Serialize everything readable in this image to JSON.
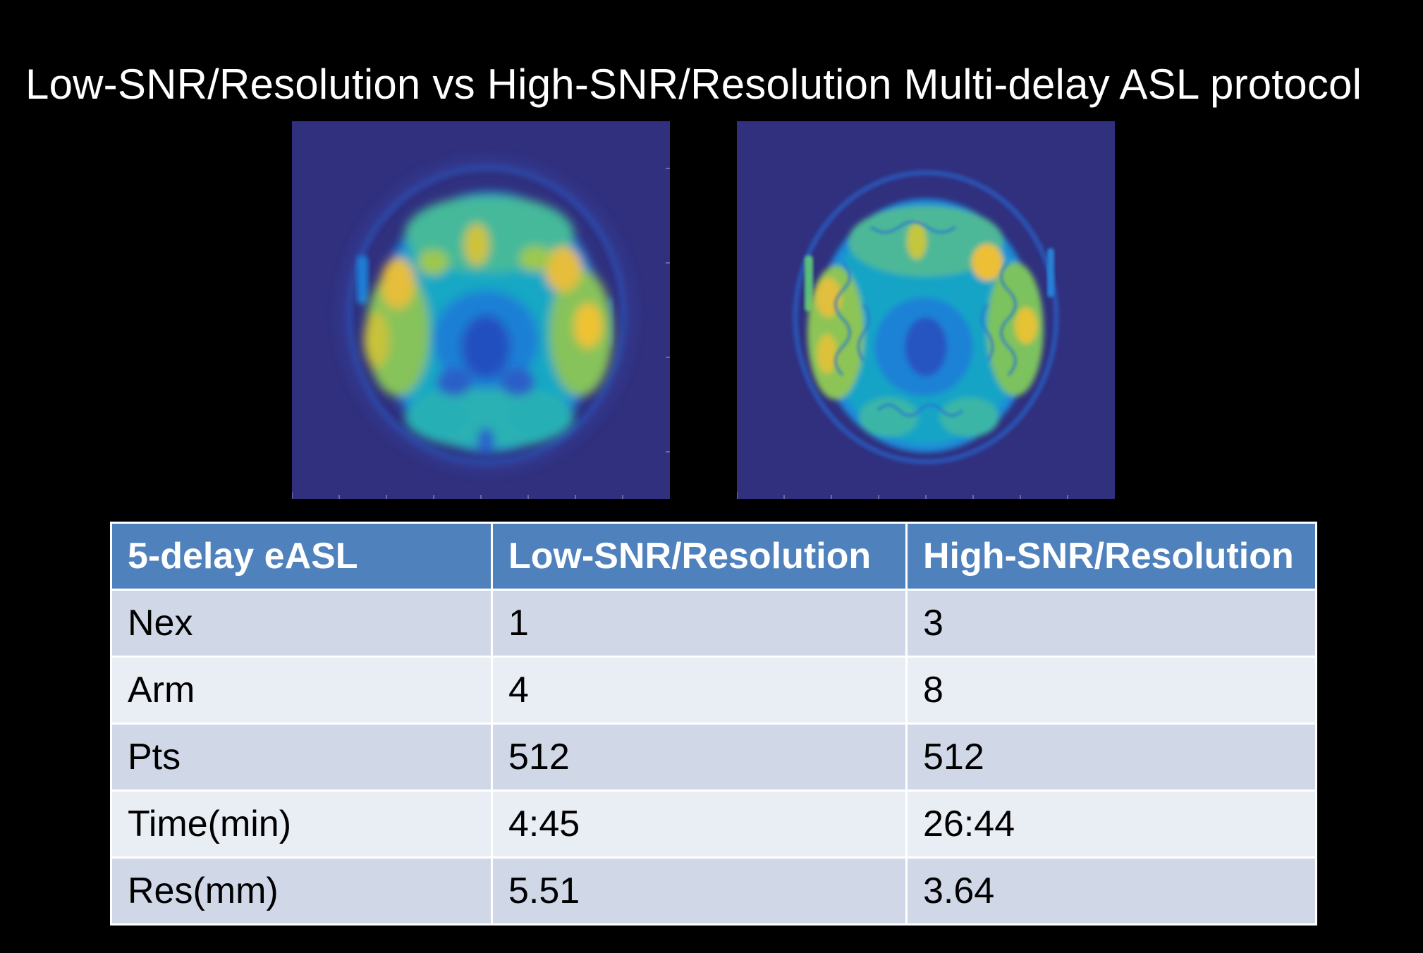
{
  "slide": {
    "title": "Low-SNR/Resolution vs High-SNR/Resolution Multi-delay ASL protocol"
  },
  "images": [
    {
      "label": "low-resolution-perfusion-map",
      "colormap": "parula"
    },
    {
      "label": "high-resolution-perfusion-map",
      "colormap": "parula"
    }
  ],
  "table": {
    "headers": [
      "5-delay eASL",
      "Low-SNR/Resolution",
      "High-SNR/Resolution"
    ],
    "rows": [
      [
        "Nex",
        "1",
        "3"
      ],
      [
        "Arm",
        "4",
        "8"
      ],
      [
        "Pts",
        "512",
        "512"
      ],
      [
        "Time(min)",
        "4:45",
        "26:44"
      ],
      [
        "Res(mm)",
        "5.51",
        "3.64"
      ]
    ]
  },
  "colors": {
    "background": "#000000",
    "header_fill": "#4f81bd",
    "row_fill_dark": "#d0d8e8",
    "row_fill_light": "#e9edf4",
    "scan_background": "#30307f"
  }
}
